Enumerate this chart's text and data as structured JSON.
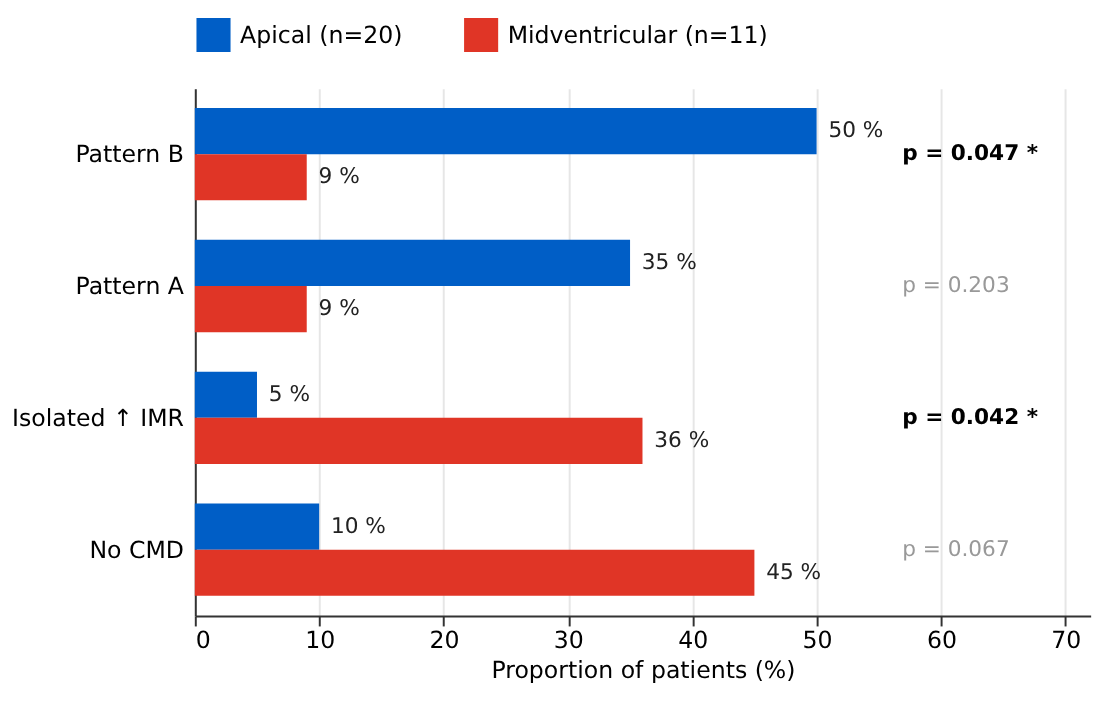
{
  "chart_data": {
    "type": "bar",
    "orientation": "horizontal",
    "xlabel": "Proportion of patients (%)",
    "categories": [
      "Pattern B",
      "Pattern A",
      "Isolated ↑ IMR",
      "No CMD"
    ],
    "series": [
      {
        "name": "Apical (n=20)",
        "color": "#005ec6",
        "values": [
          50,
          35,
          5,
          10
        ],
        "value_labels": [
          "50 %",
          "35 %",
          "5 %",
          "10 %"
        ]
      },
      {
        "name": "Midventricular (n=11)",
        "color": "#e03526",
        "values": [
          9,
          9,
          36,
          45
        ],
        "value_labels": [
          "9 %",
          "9 %",
          "36 %",
          "45 %"
        ]
      }
    ],
    "xlim": [
      0,
      72
    ],
    "xticks": [
      0,
      10,
      20,
      30,
      40,
      50,
      60,
      70
    ],
    "grid": "x",
    "legend": "top",
    "annotations": [
      "p = 0.047  *",
      "p = 0.203",
      "p = 0.042  *",
      "p = 0.067"
    ]
  }
}
